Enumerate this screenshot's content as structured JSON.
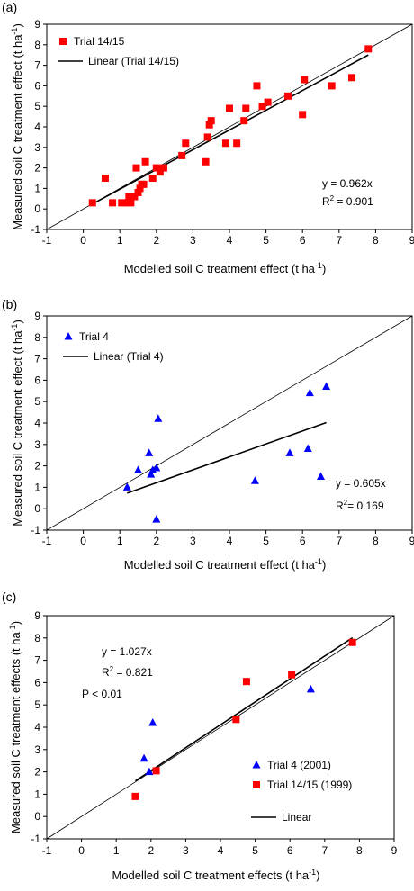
{
  "panels": [
    {
      "label": "(a)",
      "annot": {
        "eq": "y = 0.962x",
        "r2_pre": "R",
        "r2_sup": "2",
        "r2_post": " = 0.901",
        "p": ""
      }
    },
    {
      "label": "(b)",
      "annot": {
        "eq": "y = 0.605x",
        "r2_pre": "R",
        "r2_sup": "2",
        "r2_post": "= 0.169",
        "p": ""
      }
    },
    {
      "label": "(c)",
      "annot": {
        "eq": "y = 1.027x",
        "r2_pre": "R",
        "r2_sup": "2",
        "r2_post": " = 0.821",
        "p": "P < 0.01"
      }
    }
  ],
  "chart_data": [
    {
      "type": "scatter",
      "title": "",
      "xlabel": "Modelled soil C treatment effect (t ha⁻¹)",
      "ylabel": "Measured soil C treatment effect (t ha⁻¹)",
      "xlim": [
        -1,
        9
      ],
      "ylim": [
        -1,
        9
      ],
      "xticks": [
        "-1",
        "0",
        "1",
        "2",
        "3",
        "4",
        "5",
        "6",
        "7",
        "8",
        "9"
      ],
      "yticks": [
        "-1",
        "0",
        "1",
        "2",
        "3",
        "4",
        "5",
        "6",
        "7",
        "8",
        "9"
      ],
      "grid": false,
      "legend_position": "top-left",
      "series": [
        {
          "name": "Trial 14/15",
          "marker": "square",
          "color": "#ff0000",
          "x": [
            0.25,
            0.6,
            0.8,
            1.05,
            1.2,
            1.25,
            1.3,
            1.4,
            1.45,
            1.5,
            1.55,
            1.6,
            1.65,
            1.7,
            1.9,
            2.0,
            2.1,
            2.2,
            2.7,
            2.8,
            3.35,
            3.4,
            3.45,
            3.5,
            3.9,
            4.0,
            4.2,
            4.4,
            4.45,
            4.75,
            4.9,
            5.05,
            5.6,
            6.0,
            6.05,
            6.8,
            7.35,
            7.8
          ],
          "y": [
            0.3,
            1.5,
            0.3,
            0.3,
            0.3,
            0.6,
            0.3,
            0.6,
            2.0,
            0.8,
            1.0,
            1.2,
            1.2,
            2.3,
            1.5,
            2.0,
            1.8,
            2.0,
            2.6,
            3.2,
            2.3,
            3.5,
            4.1,
            4.3,
            3.2,
            4.9,
            3.2,
            4.3,
            4.9,
            6.0,
            5.0,
            5.2,
            5.5,
            4.6,
            6.3,
            6.0,
            6.4,
            7.8
          ]
        },
        {
          "name": "Linear (Trial 14/15)",
          "kind": "line",
          "color": "#000000",
          "slope": 0.962,
          "x_range": [
            0.25,
            7.8
          ]
        }
      ],
      "identity_line": true
    },
    {
      "type": "scatter",
      "title": "",
      "xlabel": "Modelled soil C treatment effect (t ha⁻¹)",
      "ylabel": "Measured soil C treatment effect (t ha⁻¹)",
      "xlim": [
        -1,
        9
      ],
      "ylim": [
        -1,
        9
      ],
      "xticks": [
        "-1",
        "0",
        "1",
        "2",
        "3",
        "4",
        "5",
        "6",
        "7",
        "8",
        "9"
      ],
      "yticks": [
        "-1",
        "0",
        "1",
        "2",
        "3",
        "4",
        "5",
        "6",
        "7",
        "8",
        "9"
      ],
      "grid": false,
      "legend_position": "top-left",
      "series": [
        {
          "name": "Trial 4",
          "marker": "triangle",
          "color": "#0000ff",
          "x": [
            1.2,
            1.5,
            1.8,
            1.85,
            1.9,
            2.0,
            2.0,
            2.05,
            4.7,
            5.65,
            6.15,
            6.2,
            6.5,
            6.65
          ],
          "y": [
            1.0,
            1.8,
            2.6,
            1.6,
            1.8,
            1.9,
            -0.5,
            4.2,
            1.3,
            2.6,
            2.8,
            5.4,
            1.5,
            5.7
          ]
        },
        {
          "name": "Linear (Trial 4)",
          "kind": "line",
          "color": "#000000",
          "slope": 0.605,
          "x_range": [
            1.2,
            6.65
          ]
        }
      ],
      "identity_line": true
    },
    {
      "type": "scatter",
      "title": "",
      "xlabel": "Modelled soil C treatment effects (t ha⁻¹)",
      "ylabel": "Measured soil C treatment effects (t ha⁻¹)",
      "xlim": [
        -1,
        9
      ],
      "ylim": [
        -1,
        9
      ],
      "xticks": [
        "-1",
        "0",
        "1",
        "2",
        "3",
        "4",
        "5",
        "6",
        "7",
        "8",
        "9"
      ],
      "yticks": [
        "-1",
        "0",
        "1",
        "2",
        "3",
        "4",
        "5",
        "6",
        "7",
        "8",
        "9"
      ],
      "grid": false,
      "legend_position": "bottom-right",
      "series": [
        {
          "name": "Trial 4 (2001)",
          "marker": "triangle",
          "color": "#0000ff",
          "x": [
            1.8,
            1.95,
            2.05,
            6.6
          ],
          "y": [
            2.6,
            2.0,
            4.2,
            5.7
          ]
        },
        {
          "name": "Trial 14/15 (1999)",
          "marker": "square",
          "color": "#ff0000",
          "x": [
            1.55,
            2.15,
            4.45,
            4.75,
            6.05,
            7.8
          ],
          "y": [
            0.9,
            2.05,
            4.35,
            6.05,
            6.35,
            7.8
          ]
        },
        {
          "name": "Linear",
          "kind": "line",
          "color": "#000000",
          "slope": 1.027,
          "x_range": [
            1.55,
            7.8
          ]
        }
      ],
      "identity_line": true
    }
  ]
}
